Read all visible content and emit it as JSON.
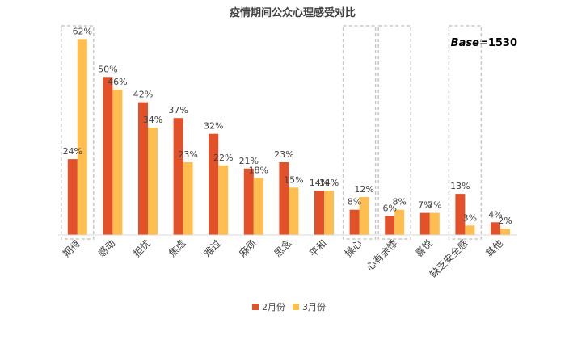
{
  "chart_data": {
    "type": "bar",
    "title": "疫情期间公众心理感受对比",
    "base_label": "Base",
    "base_value": "=1530",
    "categories": [
      "期待",
      "感动",
      "担忧",
      "焦虑",
      "难过",
      "麻烦",
      "思念",
      "平和",
      "操心",
      "心有余悸",
      "喜悦",
      "缺乏安全感",
      "其他"
    ],
    "series": [
      {
        "name": "2月份",
        "color": "#E2512A",
        "values": [
          24,
          50,
          42,
          37,
          32,
          21,
          23,
          14,
          8,
          6,
          7,
          13,
          4
        ]
      },
      {
        "name": "3月份",
        "color": "#FFBE4F",
        "values": [
          62,
          46,
          34,
          23,
          22,
          18,
          15,
          14,
          12,
          8,
          7,
          3,
          2
        ]
      }
    ],
    "highlighted_categories": [
      "期待",
      "操心",
      "心有余悸",
      "缺乏安全感"
    ],
    "value_suffix": "%",
    "ylim": [
      0,
      70
    ],
    "grid": false,
    "legend_position": "bottom"
  }
}
